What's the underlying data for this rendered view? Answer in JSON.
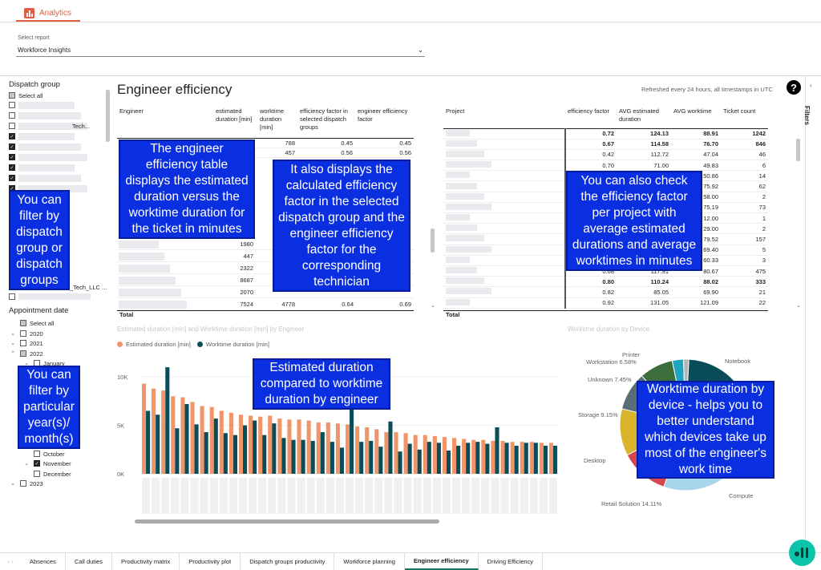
{
  "app": {
    "tab_label": "Analytics"
  },
  "report_picker": {
    "label": "Select report",
    "value": "Workforce Insights"
  },
  "page": {
    "title": "Engineer efficiency",
    "refresh_note": "Refreshed every 24 hours, all timestamps in UTC",
    "help_label": "?"
  },
  "filters_pane": {
    "label": "Filters"
  },
  "dispatch_slicer": {
    "title": "Dispatch group",
    "select_all": "Select all",
    "partial_item_suffix": "Tech...",
    "partial_item_suffix_2": "S_Tech_LLC ..."
  },
  "date_slicer": {
    "title": "Appointment date",
    "select_all": "Select all",
    "years": [
      "2020",
      "2021",
      "2022",
      "2023"
    ],
    "months_top": [
      "January"
    ],
    "months_bottom": [
      "October",
      "November",
      "December"
    ]
  },
  "callouts": {
    "dispatch": "You can filter by dispatch group or dispatch groups",
    "date": "You can filter by particular year(s)/ month(s)",
    "eng_table": "The engineer efficiency table displays the estimated duration versus the worktime duration for the ticket in minutes",
    "factor": "It also displays the calculated efficiency factor in the selected dispatch group and the engineer efficiency factor for the corresponding technician",
    "project": "You can also check the efficiency factor per project with average estimated durations and average worktimes in minutes",
    "bar": "Estimated duration compared to worktime duration by engineer",
    "pie": "Worktime duration by device - helps you to better understand which devices take up most of the engineer's work time"
  },
  "engineer_table": {
    "headers": [
      "Engineer",
      "estimated duration [min]",
      "worktime duration [min]",
      "efficiency factor in selected dispatch groups",
      "engineer efficiency factor"
    ],
    "rows_top": [
      [
        "",
        "788",
        "0.45",
        "0.45"
      ],
      [
        "",
        "457",
        "0.56",
        "0.56"
      ]
    ],
    "rows_bottom": [
      [
        "1980",
        "",
        "",
        ""
      ],
      [
        "447",
        "",
        "",
        ""
      ],
      [
        "2322",
        "",
        "",
        ""
      ],
      [
        "8687",
        "",
        "",
        ""
      ],
      [
        "2070",
        "",
        "",
        ""
      ],
      [
        "7524",
        "4778",
        "0.64",
        "0.69"
      ]
    ],
    "total_label": "Total"
  },
  "project_table": {
    "headers": [
      "Project",
      "efficiency factor",
      "AVG estimated duration",
      "AVG worktime",
      "Ticket count"
    ],
    "rows": [
      [
        "0.72",
        "124.13",
        "88.91",
        "1242",
        true
      ],
      [
        "0.67",
        "114.58",
        "76.70",
        "846",
        true
      ],
      [
        "0.42",
        "112.72",
        "47.04",
        "46",
        false
      ],
      [
        "0.70",
        "71.00",
        "49.83",
        "6",
        false
      ],
      [
        "",
        "",
        "50.86",
        "14",
        false
      ],
      [
        "",
        "",
        "75.92",
        "62",
        false
      ],
      [
        "",
        "",
        "58.00",
        "2",
        false
      ],
      [
        "",
        "",
        "75.19",
        "73",
        false
      ],
      [
        "",
        "",
        "12.00",
        "1",
        false
      ],
      [
        "",
        "",
        "29.00",
        "2",
        false
      ],
      [
        "",
        "",
        "79.52",
        "157",
        false
      ],
      [
        "",
        "",
        "69.40",
        "5",
        false
      ],
      [
        "",
        "",
        "60.33",
        "3",
        false
      ],
      [
        "0.68",
        "117.91",
        "80.67",
        "475",
        false
      ],
      [
        "0.80",
        "110.24",
        "88.02",
        "333",
        true
      ],
      [
        "0.82",
        "85.05",
        "69.90",
        "21",
        false
      ],
      [
        "0.92",
        "131.05",
        "121.09",
        "22",
        false
      ]
    ],
    "total_label": "Total"
  },
  "chart_data": [
    {
      "type": "bar",
      "title": "Estimated duration [min] and Worktime duration [min] by Engineer",
      "ylim": [
        0,
        12000
      ],
      "yticks": [
        "10K",
        "5K",
        "0K"
      ],
      "series": [
        {
          "name": "Estimated duration [min]",
          "color": "#f0956a",
          "values": [
            9300,
            8800,
            8600,
            8000,
            7900,
            7400,
            7000,
            6900,
            6500,
            6300,
            6100,
            6000,
            5900,
            6000,
            5700,
            5600,
            5600,
            5500,
            5300,
            5300,
            5200,
            5100,
            4900,
            4800,
            4600,
            4300,
            4300,
            4200,
            4000,
            4000,
            3900,
            3800,
            3700,
            3600,
            3500,
            3500,
            3400,
            3400,
            3300,
            3300,
            3300,
            3200,
            3200
          ]
        },
        {
          "name": "Worktime duration [min]",
          "color": "#0a4d58",
          "values": [
            6500,
            6100,
            11000,
            4700,
            7200,
            5100,
            4300,
            5700,
            4200,
            4000,
            5000,
            5500,
            4000,
            5200,
            3700,
            3500,
            3500,
            3400,
            4300,
            3300,
            2700,
            6900,
            3300,
            3400,
            2800,
            5400,
            2300,
            3100,
            2500,
            3300,
            3200,
            2400,
            2900,
            3200,
            3300,
            3100,
            4800,
            3200,
            2900,
            3200,
            3200,
            2900,
            2900
          ]
        }
      ]
    },
    {
      "type": "pie",
      "title": "Worktime duration by Device",
      "slices": [
        {
          "label": "Notebook",
          "value": 21.0,
          "color": "#0a4d58"
        },
        {
          "label": "Compute",
          "value": 8.0,
          "color": "#f0956a"
        },
        {
          "label": "Retail Solution 14.11%",
          "value": 14.11,
          "color": "#a8d5e8"
        },
        {
          "label": "Desktop",
          "value": 9.5,
          "color": "#d64550"
        },
        {
          "label": "Storage 9.15%",
          "value": 9.15,
          "color": "#d9b32b"
        },
        {
          "label": "Unknown 7.45%",
          "value": 7.45,
          "color": "#5a6c7a"
        },
        {
          "label": "Workstation 6.58%",
          "value": 6.58,
          "color": "#3b6e3a"
        },
        {
          "label": "Printer",
          "value": 2.2,
          "color": "#1fa5c0"
        },
        {
          "label": "",
          "value": 1.0,
          "color": "#b4b4b4"
        }
      ]
    }
  ],
  "tabs": [
    "Absences",
    "Call duties",
    "Productivity matrix",
    "Productivity plot",
    "Dispatch groups productivity",
    "Workforce planning",
    "Engineer efficiency",
    "Driving Efficiency"
  ],
  "active_tab": "Engineer efficiency"
}
